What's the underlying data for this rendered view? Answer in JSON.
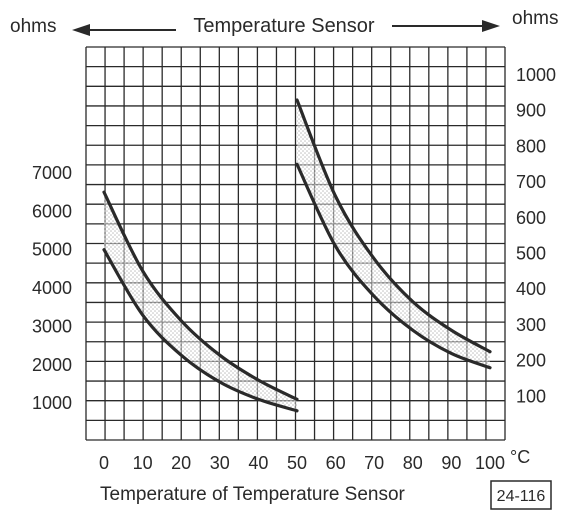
{
  "chart_data": {
    "type": "line",
    "title": "Temperature Sensor",
    "xlabel": "Temperature of Temperature Sensor",
    "x_unit": "°C",
    "ylabel_left": "ohms",
    "ylabel_right": "ohms",
    "figure_id": "24-116",
    "x_ticks": [
      "0",
      "10",
      "20",
      "30",
      "40",
      "50",
      "60",
      "70",
      "80",
      "90",
      "100"
    ],
    "y_left_ticks": [
      "7000",
      "6000",
      "5000",
      "4000",
      "3000",
      "2000",
      "1000"
    ],
    "y_right_ticks": [
      "1000",
      "900",
      "800",
      "700",
      "600",
      "500",
      "400",
      "300",
      "200",
      "100"
    ],
    "xlim": [
      0,
      100
    ],
    "ylim_left": [
      0,
      7000
    ],
    "ylim_right": [
      0,
      1000
    ],
    "grid": true,
    "series": [
      {
        "axis": "left",
        "bound": "upper",
        "points": [
          [
            0,
            6500
          ],
          [
            10,
            4450
          ],
          [
            20,
            3150
          ],
          [
            30,
            2250
          ],
          [
            40,
            1600
          ],
          [
            50,
            1100
          ]
        ]
      },
      {
        "axis": "left",
        "bound": "lower",
        "points": [
          [
            0,
            5000
          ],
          [
            10,
            3300
          ],
          [
            20,
            2250
          ],
          [
            30,
            1550
          ],
          [
            40,
            1100
          ],
          [
            50,
            800
          ]
        ]
      },
      {
        "axis": "right",
        "bound": "upper",
        "points": [
          [
            50,
            930
          ],
          [
            60,
            660
          ],
          [
            70,
            485
          ],
          [
            80,
            365
          ],
          [
            90,
            285
          ],
          [
            100,
            225
          ]
        ]
      },
      {
        "axis": "right",
        "bound": "lower",
        "points": [
          [
            50,
            750
          ],
          [
            60,
            520
          ],
          [
            70,
            380
          ],
          [
            80,
            285
          ],
          [
            90,
            220
          ],
          [
            100,
            180
          ]
        ]
      }
    ],
    "colors": {
      "ink": "#2a2a2a",
      "band": "#dcdcdc",
      "paper": "#ffffff"
    }
  }
}
